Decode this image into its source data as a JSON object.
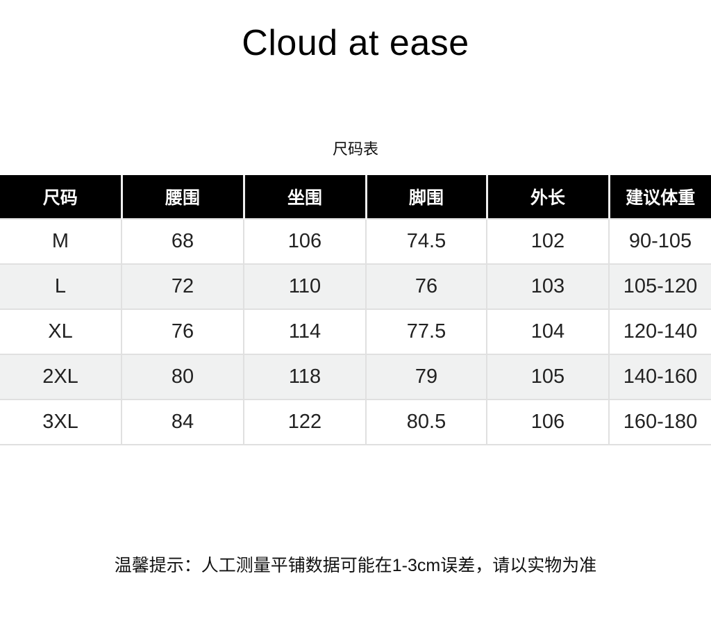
{
  "header": {
    "title": "Cloud at ease"
  },
  "chart_data": {
    "type": "table",
    "title": "尺码表",
    "columns": [
      "尺码",
      "腰围",
      "坐围",
      "脚围",
      "外长",
      "建议体重"
    ],
    "rows": [
      [
        "M",
        "68",
        "106",
        "74.5",
        "102",
        "90-105"
      ],
      [
        "L",
        "72",
        "110",
        "76",
        "103",
        "105-120"
      ],
      [
        "XL",
        "76",
        "114",
        "77.5",
        "104",
        "120-140"
      ],
      [
        "2XL",
        "80",
        "118",
        "79",
        "105",
        "140-160"
      ],
      [
        "3XL",
        "84",
        "122",
        "80.5",
        "106",
        "160-180"
      ]
    ]
  },
  "footer": {
    "note": "温馨提示：人工测量平铺数据可能在1-3cm误差，请以实物为准"
  },
  "colors": {
    "header_bg": "#000000",
    "header_text": "#ffffff",
    "row_alt_bg": "#f0f1f1",
    "border": "#e0e0e0",
    "text": "#222222",
    "page_bg": "#ffffff"
  }
}
